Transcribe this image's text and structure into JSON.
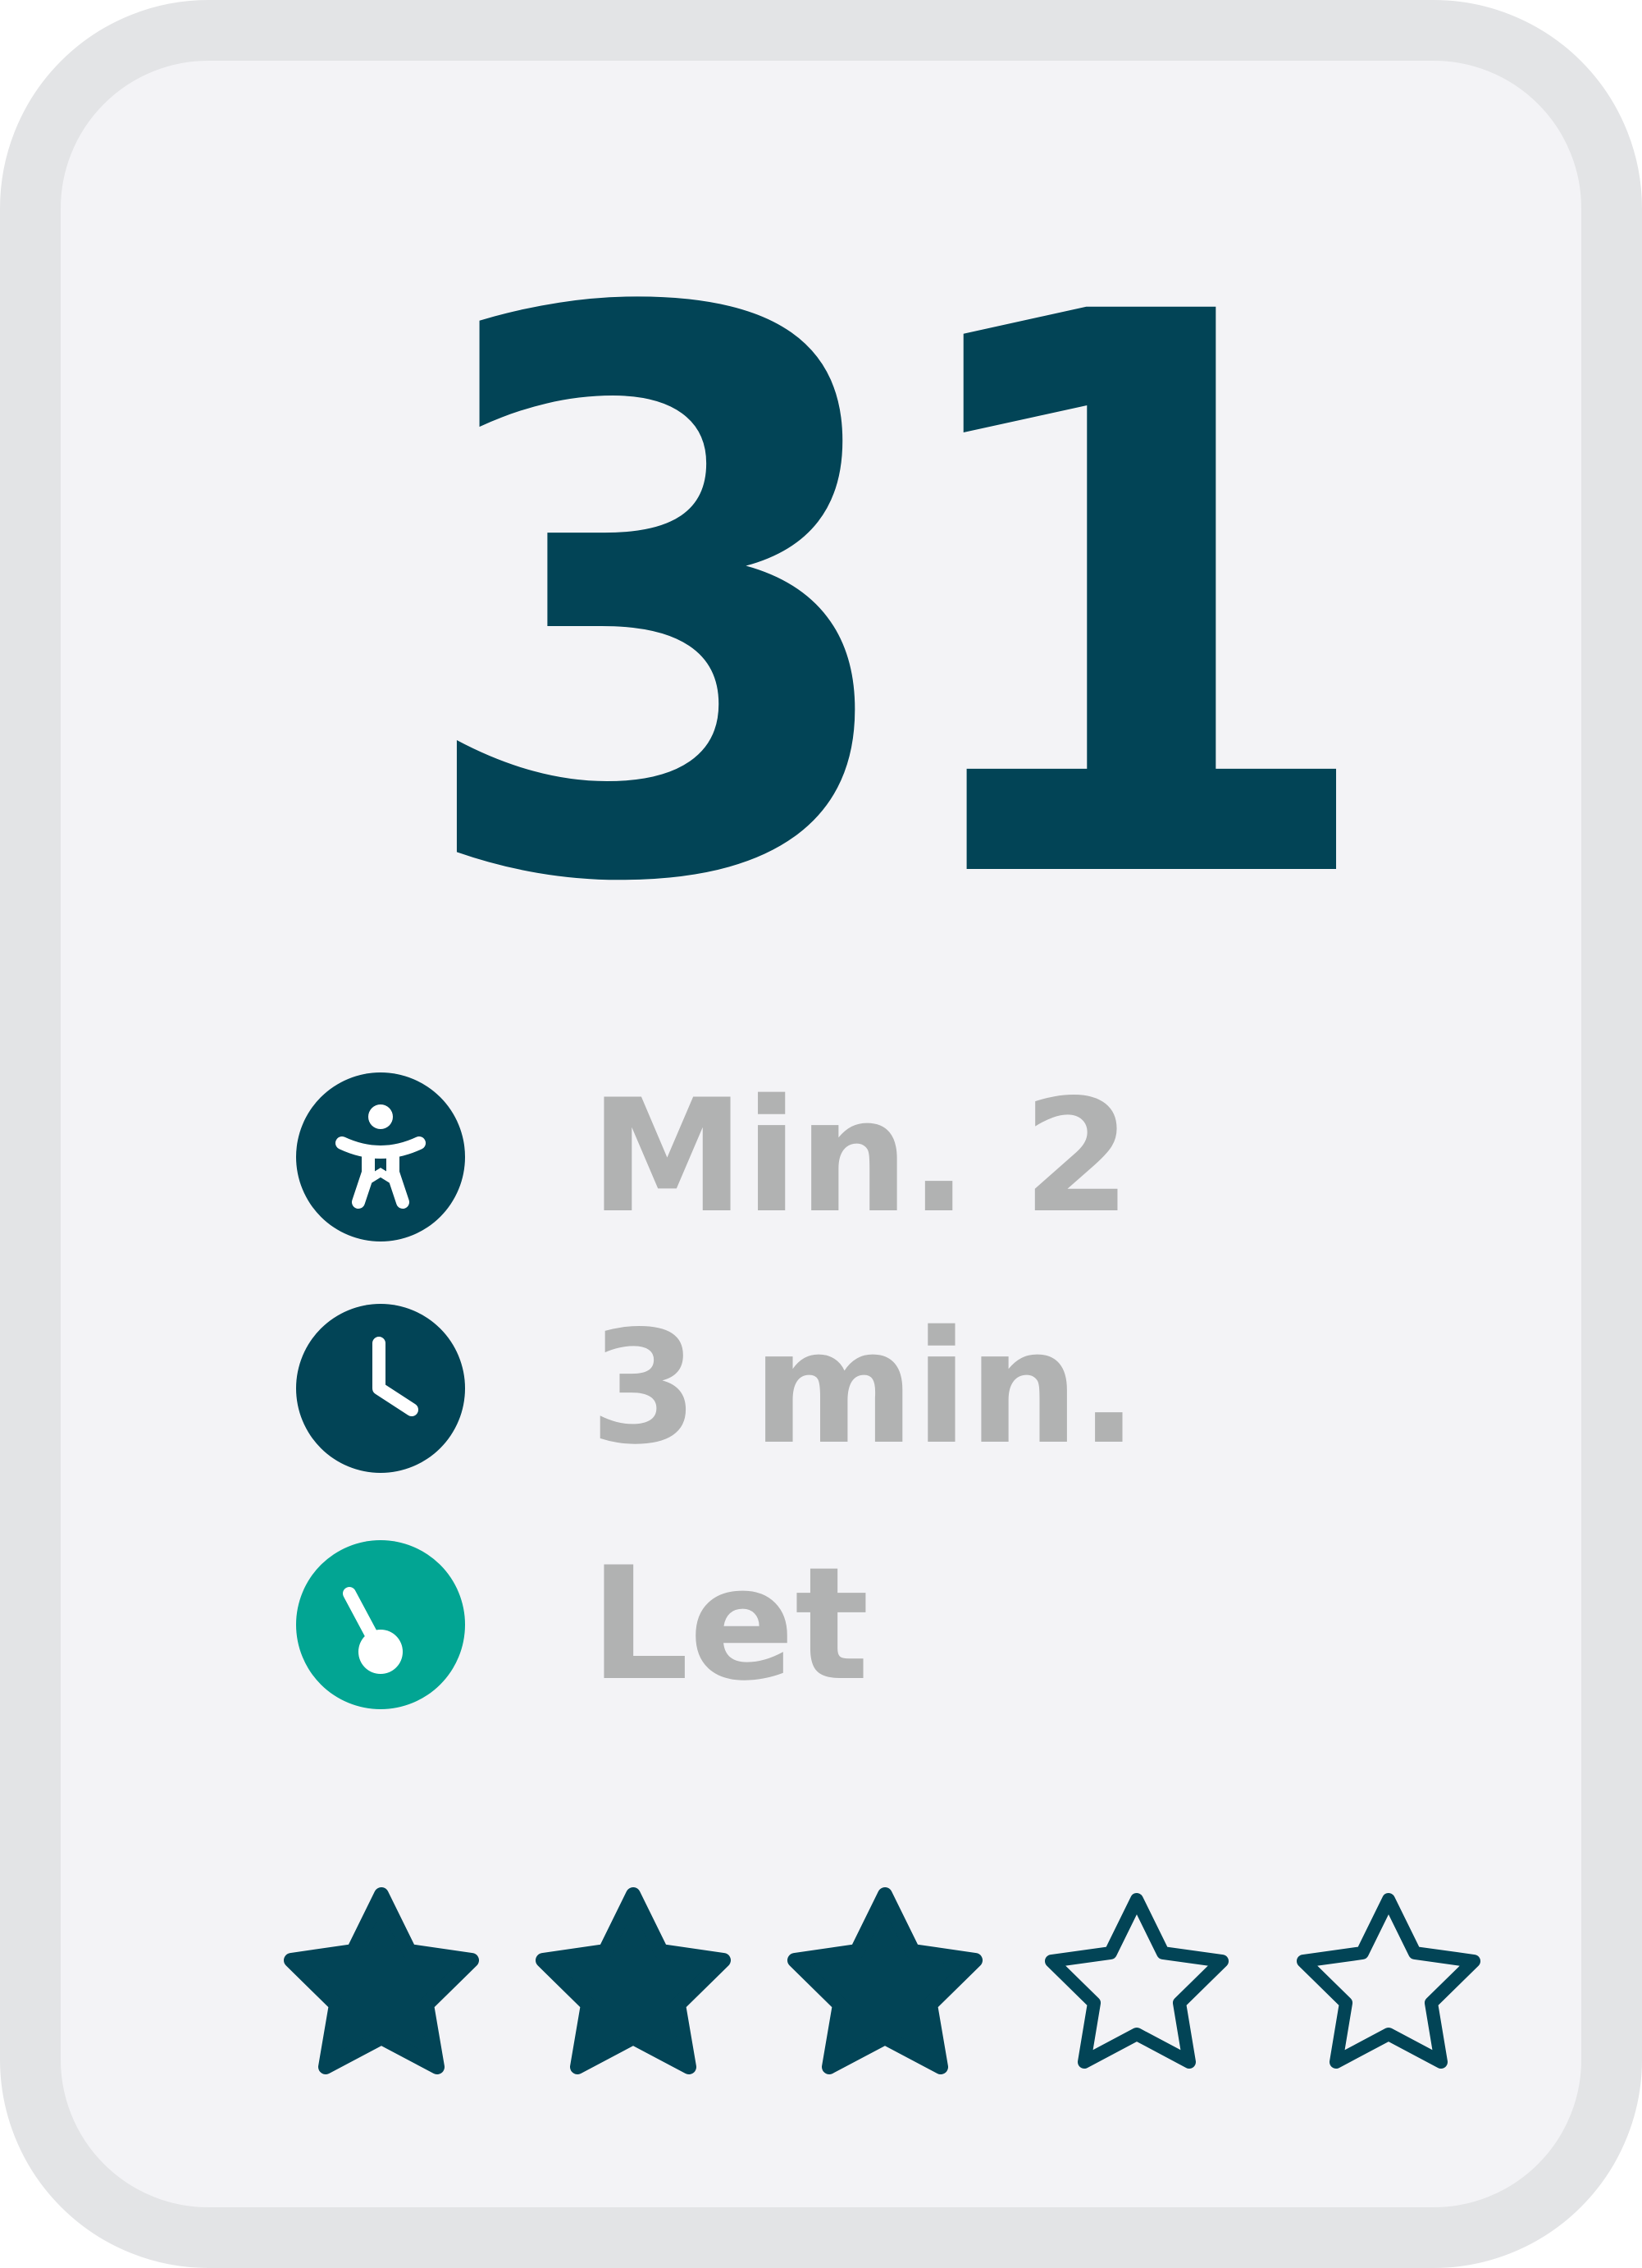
{
  "card": {
    "number": "31",
    "rows": [
      {
        "icon": "person-icon",
        "text": "Min. 2"
      },
      {
        "icon": "clock-icon",
        "text": "3 min."
      },
      {
        "icon": "difficulty-gauge-icon",
        "text": "Let"
      }
    ],
    "rating": {
      "value": 3,
      "max": 5
    }
  },
  "colors": {
    "primary": "#024456",
    "accent": "#02a593",
    "text_muted": "#b1b2b2",
    "card_bg": "#f3f3f6",
    "border": "#e3e4e6"
  }
}
